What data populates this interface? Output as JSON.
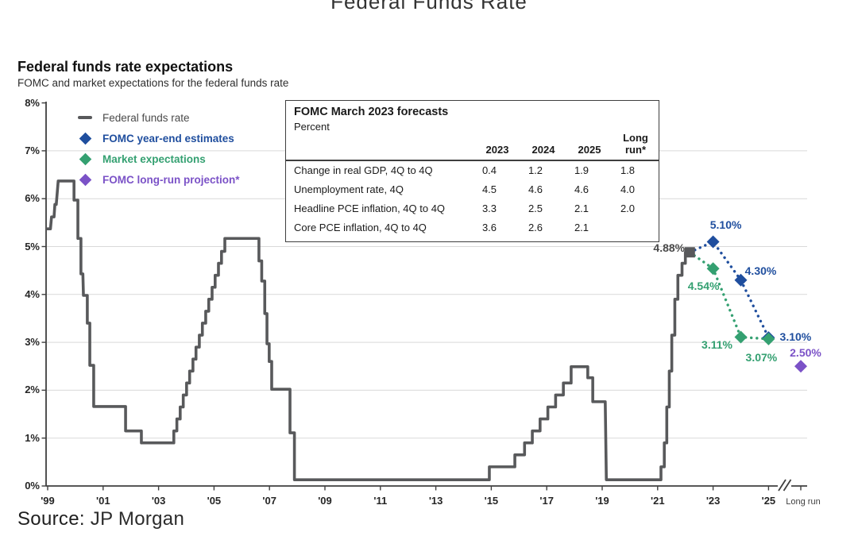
{
  "page": {
    "top_title": "Federal Funds Rate",
    "source_label": "Source:",
    "source_value": "JP Morgan"
  },
  "header": {
    "title": "Federal funds rate expectations",
    "subtitle": "FOMC and market expectations for the federal funds rate"
  },
  "legend": [
    {
      "label": "Federal funds rate",
      "color": "#4a4a4a",
      "marker_color": "#58595B",
      "marker": "dash",
      "bold": false
    },
    {
      "label": "FOMC year-end estimates",
      "color": "#1F4E9E",
      "marker_color": "#1F4E9E",
      "marker": "diamond",
      "bold": true
    },
    {
      "label": "Market expectations",
      "color": "#34A071",
      "marker_color": "#34A071",
      "marker": "diamond",
      "bold": true
    },
    {
      "label": "FOMC long-run projection*",
      "color": "#7B52C7",
      "marker_color": "#7B52C7",
      "marker": "diamond",
      "bold": true
    }
  ],
  "forecast_table": {
    "title": "FOMC March 2023 forecasts",
    "subtitle": "Percent",
    "columns": [
      "2023",
      "2024",
      "2025",
      "Long run*"
    ],
    "rows": [
      {
        "label": "Change in real GDP, 4Q to 4Q",
        "values": [
          "0.4",
          "1.2",
          "1.9",
          "1.8"
        ]
      },
      {
        "label": "Unemployment rate, 4Q",
        "values": [
          "4.5",
          "4.6",
          "4.6",
          "4.0"
        ]
      },
      {
        "label": "Headline PCE inflation, 4Q to 4Q",
        "values": [
          "3.3",
          "2.5",
          "2.1",
          "2.0"
        ]
      },
      {
        "label": "Core PCE inflation, 4Q to 4Q",
        "values": [
          "3.6",
          "2.6",
          "2.1",
          ""
        ]
      }
    ]
  },
  "chart_data": {
    "type": "line",
    "title": "Federal funds rate expectations",
    "ylabel": "Percent",
    "ylim": [
      0,
      8
    ],
    "grid": "horizontal",
    "y_ticks": [
      {
        "v": 0,
        "label": "0%"
      },
      {
        "v": 1,
        "label": "1%"
      },
      {
        "v": 2,
        "label": "2%"
      },
      {
        "v": 3,
        "label": "3%"
      },
      {
        "v": 4,
        "label": "4%"
      },
      {
        "v": 5,
        "label": "5%"
      },
      {
        "v": 6,
        "label": "6%"
      },
      {
        "v": 7,
        "label": "7%"
      },
      {
        "v": 8,
        "label": "8%"
      }
    ],
    "x_ticks": [
      {
        "t": 1999,
        "label": "'99"
      },
      {
        "t": 2001,
        "label": "'01"
      },
      {
        "t": 2003,
        "label": "'03"
      },
      {
        "t": 2005,
        "label": "'05"
      },
      {
        "t": 2007,
        "label": "'07"
      },
      {
        "t": 2009,
        "label": "'09"
      },
      {
        "t": 2011,
        "label": "'11"
      },
      {
        "t": 2013,
        "label": "'13"
      },
      {
        "t": 2015,
        "label": "'15"
      },
      {
        "t": 2017,
        "label": "'17"
      },
      {
        "t": 2019,
        "label": "'19"
      },
      {
        "t": 2021,
        "label": "'21"
      },
      {
        "t": 2023,
        "label": "'23"
      },
      {
        "t": 2025,
        "label": "'25"
      },
      {
        "t": "longrun",
        "label": "Long run"
      }
    ],
    "axis_break_between": [
      "2025",
      "Long run"
    ],
    "current_rate": {
      "t": 2022.16,
      "value": 4.88,
      "label": "4.88%",
      "color": "#58595B"
    },
    "series": [
      {
        "name": "Federal funds rate",
        "color": "#58595B",
        "style": "solid",
        "marker": "none",
        "points": [
          [
            1998.94,
            5.37
          ],
          [
            1999.1,
            5.37
          ],
          [
            1999.14,
            5.62
          ],
          [
            1999.23,
            5.62
          ],
          [
            1999.26,
            5.88
          ],
          [
            1999.31,
            5.88
          ],
          [
            1999.38,
            6.37
          ],
          [
            1999.95,
            6.37
          ],
          [
            1999.95,
            5.97
          ],
          [
            2000.09,
            5.97
          ],
          [
            2000.09,
            5.17
          ],
          [
            2000.2,
            5.17
          ],
          [
            2000.2,
            4.43
          ],
          [
            2000.27,
            4.43
          ],
          [
            2000.29,
            3.98
          ],
          [
            2000.43,
            3.98
          ],
          [
            2000.43,
            3.4
          ],
          [
            2000.52,
            3.4
          ],
          [
            2000.52,
            2.52
          ],
          [
            2000.66,
            2.52
          ],
          [
            2000.66,
            1.66
          ],
          [
            2001.81,
            1.66
          ],
          [
            2001.81,
            1.15
          ],
          [
            2002.38,
            1.15
          ],
          [
            2002.38,
            0.9
          ],
          [
            2003.55,
            0.9
          ],
          [
            2003.55,
            1.15
          ],
          [
            2003.66,
            1.15
          ],
          [
            2003.66,
            1.4
          ],
          [
            2003.78,
            1.4
          ],
          [
            2003.78,
            1.65
          ],
          [
            2003.89,
            1.65
          ],
          [
            2003.89,
            1.9
          ],
          [
            2004.01,
            1.9
          ],
          [
            2004.01,
            2.15
          ],
          [
            2004.12,
            2.15
          ],
          [
            2004.12,
            2.4
          ],
          [
            2004.24,
            2.4
          ],
          [
            2004.24,
            2.65
          ],
          [
            2004.35,
            2.65
          ],
          [
            2004.35,
            2.9
          ],
          [
            2004.47,
            2.9
          ],
          [
            2004.47,
            3.15
          ],
          [
            2004.58,
            3.15
          ],
          [
            2004.58,
            3.4
          ],
          [
            2004.7,
            3.4
          ],
          [
            2004.7,
            3.65
          ],
          [
            2004.81,
            3.65
          ],
          [
            2004.81,
            3.9
          ],
          [
            2004.93,
            3.9
          ],
          [
            2004.93,
            4.15
          ],
          [
            2005.04,
            4.15
          ],
          [
            2005.04,
            4.4
          ],
          [
            2005.16,
            4.4
          ],
          [
            2005.16,
            4.65
          ],
          [
            2005.27,
            4.65
          ],
          [
            2005.27,
            4.9
          ],
          [
            2005.39,
            4.9
          ],
          [
            2005.39,
            5.17
          ],
          [
            2006.62,
            5.17
          ],
          [
            2006.62,
            4.7
          ],
          [
            2006.72,
            4.7
          ],
          [
            2006.72,
            4.28
          ],
          [
            2006.83,
            4.28
          ],
          [
            2006.83,
            3.6
          ],
          [
            2006.91,
            3.6
          ],
          [
            2006.91,
            2.97
          ],
          [
            2006.99,
            2.97
          ],
          [
            2006.99,
            2.6
          ],
          [
            2007.08,
            2.6
          ],
          [
            2007.08,
            2.02
          ],
          [
            2007.74,
            2.02
          ],
          [
            2007.74,
            1.11
          ],
          [
            2007.9,
            1.11
          ],
          [
            2007.9,
            0.13
          ],
          [
            2014.93,
            0.13
          ],
          [
            2014.93,
            0.4
          ],
          [
            2015.85,
            0.4
          ],
          [
            2015.85,
            0.65
          ],
          [
            2016.2,
            0.65
          ],
          [
            2016.2,
            0.9
          ],
          [
            2016.48,
            0.9
          ],
          [
            2016.48,
            1.15
          ],
          [
            2016.76,
            1.15
          ],
          [
            2016.76,
            1.4
          ],
          [
            2017.04,
            1.4
          ],
          [
            2017.04,
            1.65
          ],
          [
            2017.32,
            1.65
          ],
          [
            2017.32,
            1.9
          ],
          [
            2017.6,
            1.9
          ],
          [
            2017.6,
            2.15
          ],
          [
            2017.88,
            2.15
          ],
          [
            2017.88,
            2.49
          ],
          [
            2018.48,
            2.49
          ],
          [
            2018.48,
            2.26
          ],
          [
            2018.66,
            2.26
          ],
          [
            2018.66,
            1.76
          ],
          [
            2019.11,
            1.76
          ],
          [
            2019.15,
            0.13
          ],
          [
            2021.12,
            0.13
          ],
          [
            2021.12,
            0.4
          ],
          [
            2021.24,
            0.4
          ],
          [
            2021.24,
            0.9
          ],
          [
            2021.33,
            0.9
          ],
          [
            2021.33,
            1.65
          ],
          [
            2021.42,
            1.65
          ],
          [
            2021.42,
            2.4
          ],
          [
            2021.51,
            2.4
          ],
          [
            2021.51,
            3.15
          ],
          [
            2021.62,
            3.15
          ],
          [
            2021.62,
            3.9
          ],
          [
            2021.73,
            3.9
          ],
          [
            2021.73,
            4.4
          ],
          [
            2021.88,
            4.4
          ],
          [
            2021.88,
            4.65
          ],
          [
            2022.0,
            4.65
          ],
          [
            2022.0,
            4.88
          ],
          [
            2022.16,
            4.88
          ]
        ],
        "point_labels": []
      },
      {
        "name": "FOMC year-end estimates",
        "color": "#1F4E9E",
        "style": "dotted",
        "marker": "diamond",
        "points": [
          [
            2022.16,
            4.88
          ],
          [
            2023,
            5.1
          ],
          [
            2024,
            4.3
          ],
          [
            2025,
            3.1
          ]
        ],
        "point_labels": [
          "",
          "5.10%",
          "4.30%",
          "3.10%"
        ]
      },
      {
        "name": "Market expectations",
        "color": "#34A071",
        "style": "dotted",
        "marker": "diamond",
        "points": [
          [
            2022.16,
            4.88
          ],
          [
            2023,
            4.54
          ],
          [
            2024,
            3.11
          ],
          [
            2025,
            3.07
          ]
        ],
        "point_labels": [
          "",
          "4.54%",
          "3.11%",
          "3.07%"
        ]
      },
      {
        "name": "FOMC long-run projection*",
        "color": "#7B52C7",
        "style": "none",
        "marker": "diamond",
        "points": [
          [
            "longrun",
            2.5
          ]
        ],
        "point_labels": [
          "2.50%"
        ]
      }
    ]
  }
}
